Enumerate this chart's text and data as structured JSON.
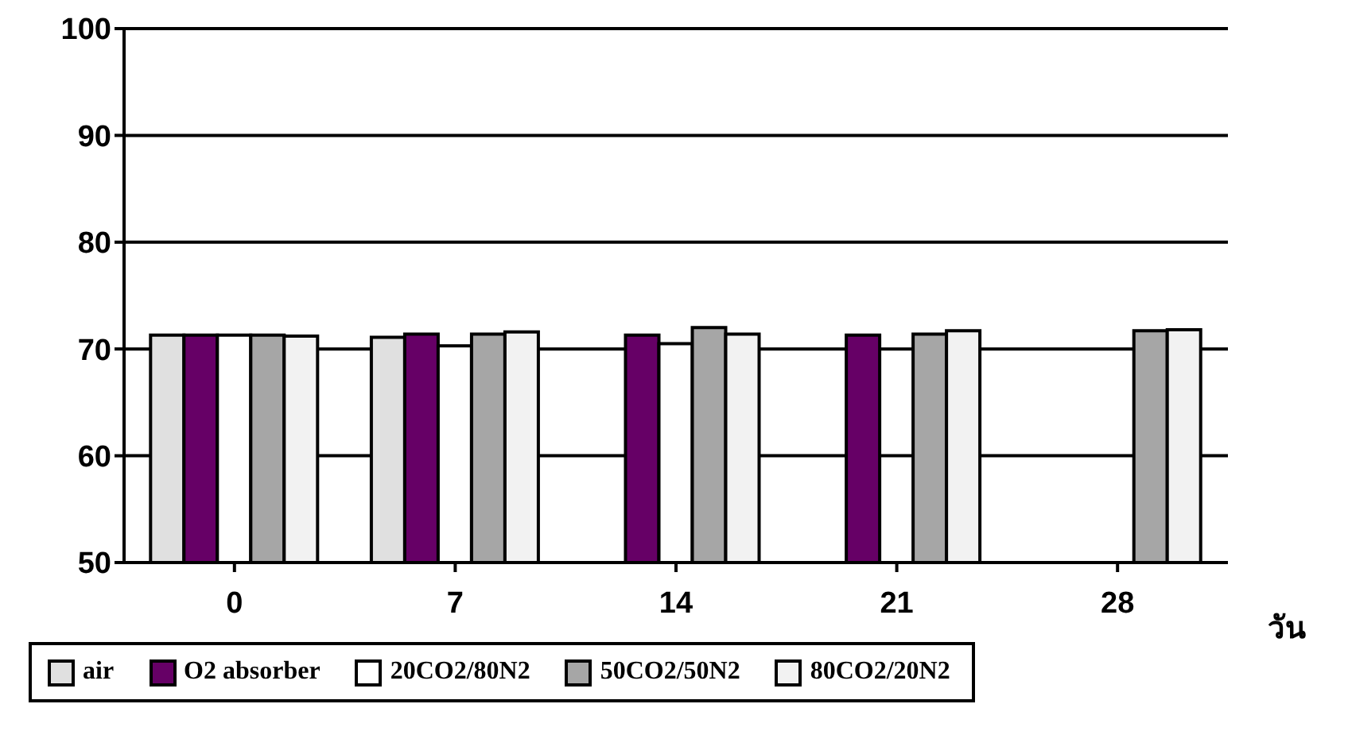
{
  "chart_data": {
    "type": "bar",
    "xlabel": "วัน",
    "categories": [
      "0",
      "7",
      "14",
      "21",
      "28"
    ],
    "series": [
      {
        "name": "air",
        "color": "#e0e0e0",
        "values": [
          71.3,
          71.1,
          null,
          null,
          null
        ]
      },
      {
        "name": "O2 absorber",
        "color": "#660066",
        "values": [
          71.3,
          71.4,
          71.3,
          71.3,
          null
        ]
      },
      {
        "name": "20CO2/80N2",
        "color": "#ffffff",
        "values": [
          71.3,
          70.3,
          70.5,
          null,
          null
        ]
      },
      {
        "name": "50CO2/50N2",
        "color": "#a6a6a6",
        "values": [
          71.3,
          71.4,
          72.0,
          71.4,
          71.7
        ]
      },
      {
        "name": "80CO2/20N2",
        "color": "#f2f2f2",
        "values": [
          71.2,
          71.6,
          71.4,
          71.7,
          71.8
        ]
      }
    ],
    "ylim": [
      50,
      100
    ],
    "yticks": [
      50,
      60,
      70,
      80,
      90,
      100
    ],
    "grid": "y",
    "legend": "bottom"
  }
}
